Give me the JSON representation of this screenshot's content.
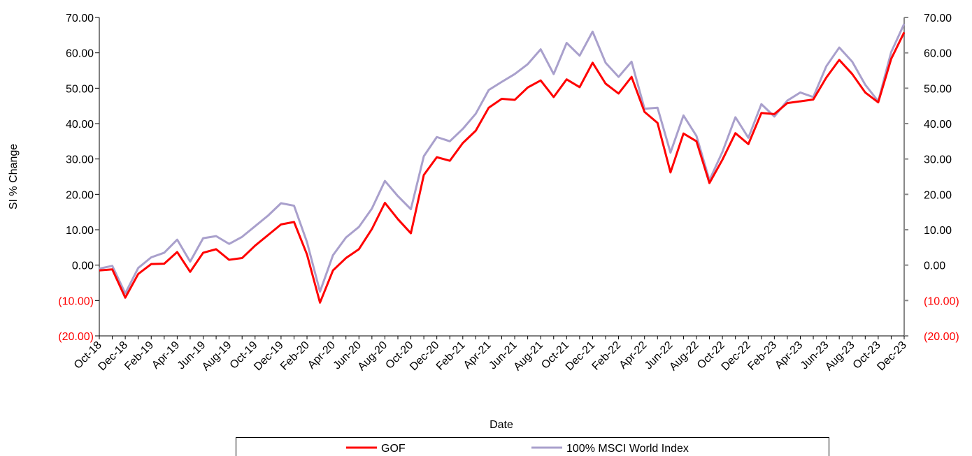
{
  "chart_data": {
    "type": "line",
    "y_axis_label": "SI % Change",
    "x_axis_label": "Date",
    "categories": [
      "Oct-18",
      null,
      "Dec-18",
      null,
      "Feb-19",
      null,
      "Apr-19",
      null,
      "Jun-19",
      null,
      "Aug-19",
      null,
      "Oct-19",
      null,
      "Dec-19",
      null,
      "Feb-20",
      null,
      "Apr-20",
      null,
      "Jun-20",
      null,
      "Aug-20",
      null,
      "Oct-20",
      null,
      "Dec-20",
      null,
      "Feb-21",
      null,
      "Apr-21",
      null,
      "Jun-21",
      null,
      "Aug-21",
      null,
      "Oct-21",
      null,
      "Dec-21",
      null,
      "Feb-22",
      null,
      "Apr-22",
      null,
      "Jun-22",
      null,
      "Aug-22",
      null,
      "Oct-22",
      null,
      "Dec-22",
      null,
      "Feb-23",
      null,
      "Apr-23",
      null,
      "Jun-23",
      null,
      "Aug-23",
      null,
      "Oct-23",
      null,
      "Dec-23"
    ],
    "series": [
      {
        "name": "GOF",
        "color": "#ff0000",
        "values": [
          -1.5,
          -1.2,
          -9.2,
          -2.5,
          0.3,
          0.4,
          3.7,
          -1.9,
          3.5,
          4.5,
          1.5,
          2.0,
          5.5,
          8.5,
          11.5,
          12.2,
          3.0,
          -10.6,
          -1.5,
          2.0,
          4.5,
          10.2,
          17.6,
          13.0,
          9.0,
          25.5,
          30.5,
          29.5,
          34.5,
          38.0,
          44.5,
          47.0,
          46.7,
          50.2,
          52.2,
          47.5,
          52.5,
          50.3,
          57.2,
          51.3,
          48.5,
          53.2,
          43.3,
          40.2,
          26.2,
          37.2,
          35.0,
          23.2,
          29.8,
          37.3,
          34.2,
          43.0,
          42.7,
          45.8,
          46.3,
          46.8,
          53.0,
          58.0,
          54.0,
          48.8,
          46.0,
          58.3,
          65.8
        ]
      },
      {
        "name": "100% MSCI World Index",
        "color": "#a9a0cc",
        "values": [
          -1.0,
          -0.2,
          -8.0,
          -0.8,
          2.2,
          3.5,
          7.2,
          1.0,
          7.6,
          8.2,
          6.0,
          8.0,
          11.0,
          14.0,
          17.5,
          16.8,
          6.5,
          -7.5,
          2.8,
          7.8,
          10.8,
          16.0,
          23.8,
          19.5,
          15.8,
          30.8,
          36.2,
          35.0,
          38.5,
          42.8,
          49.5,
          51.8,
          54.0,
          56.8,
          61.0,
          54.0,
          62.8,
          59.2,
          66.0,
          57.2,
          53.2,
          57.5,
          44.2,
          44.5,
          31.8,
          42.3,
          36.5,
          24.0,
          32.0,
          41.8,
          36.0,
          45.5,
          42.0,
          46.5,
          48.8,
          47.5,
          56.2,
          61.5,
          57.5,
          51.0,
          46.3,
          60.2,
          68.2
        ]
      }
    ],
    "ylim": [
      -20,
      70
    ],
    "yticks": [
      {
        "value": -20,
        "label": "(20.00)"
      },
      {
        "value": -10,
        "label": "(10.00)"
      },
      {
        "value": 0,
        "label": "0.00"
      },
      {
        "value": 10,
        "label": "10.00"
      },
      {
        "value": 20,
        "label": "20.00"
      },
      {
        "value": 30,
        "label": "30.00"
      },
      {
        "value": 40,
        "label": "40.00"
      },
      {
        "value": 50,
        "label": "50.00"
      },
      {
        "value": 60,
        "label": "60.00"
      },
      {
        "value": 70,
        "label": "70.00"
      }
    ],
    "y2lim": [
      -20,
      70
    ],
    "y2ticks": [
      {
        "value": -20,
        "label": "(20.00)"
      },
      {
        "value": -10,
        "label": "(10.00)"
      },
      {
        "value": 0,
        "label": "0.00"
      },
      {
        "value": 10,
        "label": "10.00"
      },
      {
        "value": 20,
        "label": "20.00"
      },
      {
        "value": 30,
        "label": "30.00"
      },
      {
        "value": 40,
        "label": "40.00"
      },
      {
        "value": 50,
        "label": "50.00"
      },
      {
        "value": 60,
        "label": "60.00"
      },
      {
        "value": 70,
        "label": "70.00"
      }
    ],
    "negative_tick_color": "#ff0000",
    "grid": false,
    "legend": "bottom"
  }
}
